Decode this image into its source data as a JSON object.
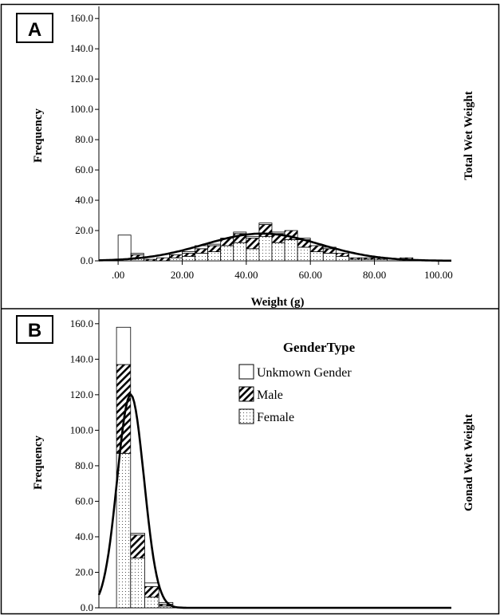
{
  "panels": [
    {
      "letter": "A",
      "side_label": "Total Wet Weight",
      "chart_data": {
        "type": "bar",
        "title": "",
        "xlabel": "Weight (g)",
        "ylabel": "Frequency",
        "ylim": [
          0,
          168
        ],
        "xlim": [
          -6,
          104
        ],
        "xticks": [
          0,
          20,
          40,
          60,
          80,
          100
        ],
        "xtick_labels": [
          ".00",
          "20.00",
          "40.00",
          "60.00",
          "80.00",
          "100.00"
        ],
        "yticks": [
          0,
          20,
          40,
          60,
          80,
          100,
          120,
          140,
          160
        ],
        "ytick_labels": [
          "0.0",
          "20.0",
          "40.0",
          "60.0",
          "80.0",
          "100.0",
          "120.0",
          "140.0",
          "160.0"
        ],
        "stacked": true,
        "bin_width": 4,
        "bin_starts": [
          0,
          4,
          8,
          12,
          16,
          20,
          24,
          28,
          32,
          36,
          40,
          44,
          48,
          52,
          56,
          60,
          64,
          68,
          72,
          76,
          80,
          84,
          88,
          92,
          96
        ],
        "series": [
          {
            "name": "Female",
            "values": [
              0,
              2,
              0,
              0,
              2,
              3,
              5,
              6,
              10,
              12,
              8,
              16,
              12,
              14,
              9,
              6,
              5,
              3,
              1,
              1,
              1,
              0,
              0,
              0,
              0
            ]
          },
          {
            "name": "Male",
            "values": [
              0,
              2,
              1,
              2,
              2,
              2,
              3,
              4,
              5,
              6,
              7,
              8,
              6,
              6,
              5,
              4,
              3,
              2,
              1,
              1,
              1,
              0,
              2,
              0,
              0
            ]
          },
          {
            "name": "Unkmown Gender",
            "values": [
              17,
              1,
              0,
              0,
              0,
              1,
              2,
              1,
              0,
              1,
              1,
              1,
              1,
              0,
              1,
              0,
              1,
              0,
              0,
              0,
              0,
              0,
              0,
              0,
              0
            ]
          }
        ],
        "curve": {
          "type": "normal",
          "mean": 45,
          "sd": 18,
          "peak": 18
        },
        "grid": false
      }
    },
    {
      "letter": "B",
      "side_label": "Gonad Wet Weight",
      "chart_data": {
        "type": "bar",
        "title": "",
        "xlabel": "",
        "ylabel": "Frequency",
        "ylim": [
          0,
          168
        ],
        "xlim": [
          0,
          100
        ],
        "yticks": [
          0,
          20,
          40,
          60,
          80,
          100,
          120,
          140,
          160
        ],
        "ytick_labels": [
          "0.0",
          "20.0",
          "40.0",
          "60.0",
          "80.0",
          "100.0",
          "120.0",
          "140.0",
          "160.0"
        ],
        "stacked": true,
        "bin_width": 4,
        "bin_starts": [
          5,
          9,
          13,
          17
        ],
        "series": [
          {
            "name": "Female",
            "values": [
              87,
              28,
              6,
              1
            ]
          },
          {
            "name": "Male",
            "values": [
              50,
              13,
              6,
              1
            ]
          },
          {
            "name": "Unkmown Gender",
            "values": [
              21,
              1,
              2,
              1
            ]
          }
        ],
        "curve": {
          "type": "normal",
          "mean": 9,
          "sd": 3.8,
          "peak": 120
        },
        "grid": false
      }
    }
  ],
  "legend": {
    "title": "GenderType",
    "placement": "top-right",
    "items": [
      {
        "label": "Unkmown Gender",
        "pattern": "empty"
      },
      {
        "label": "Male",
        "pattern": "hatched"
      },
      {
        "label": "Female",
        "pattern": "dotted"
      }
    ]
  }
}
